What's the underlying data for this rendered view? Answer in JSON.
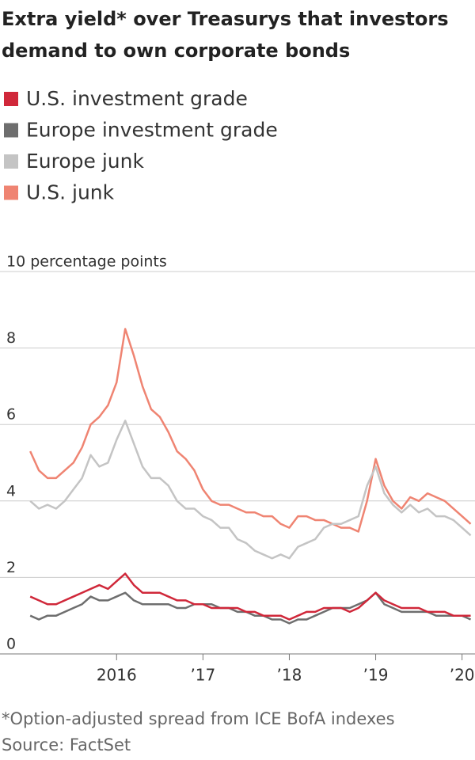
{
  "chart_data": {
    "type": "line",
    "title": "Extra yield* over Treasurys that investors demand to own corporate bonds",
    "footnote": "*Option-adjusted spread from ICE BofA indexes",
    "source": "Source: FactSet",
    "x": [
      2015.0,
      2015.1,
      2015.2,
      2015.3,
      2015.4,
      2015.5,
      2015.6,
      2015.7,
      2015.8,
      2015.9,
      2016.0,
      2016.1,
      2016.2,
      2016.3,
      2016.4,
      2016.5,
      2016.6,
      2016.7,
      2016.8,
      2016.9,
      2017.0,
      2017.1,
      2017.2,
      2017.3,
      2017.4,
      2017.5,
      2017.6,
      2017.7,
      2017.8,
      2017.9,
      2018.0,
      2018.1,
      2018.2,
      2018.3,
      2018.4,
      2018.5,
      2018.6,
      2018.7,
      2018.8,
      2018.9,
      2019.0,
      2019.1,
      2019.2,
      2019.3,
      2019.4,
      2019.5,
      2019.6,
      2019.7,
      2019.8,
      2019.9,
      2020.0,
      2020.1
    ],
    "series": [
      {
        "name": "U.S. investment grade",
        "color": "#d0283a",
        "values": [
          1.5,
          1.4,
          1.3,
          1.3,
          1.4,
          1.5,
          1.6,
          1.7,
          1.8,
          1.7,
          1.9,
          2.1,
          1.8,
          1.6,
          1.6,
          1.6,
          1.5,
          1.4,
          1.4,
          1.3,
          1.3,
          1.2,
          1.2,
          1.2,
          1.2,
          1.1,
          1.1,
          1.0,
          1.0,
          1.0,
          0.9,
          1.0,
          1.1,
          1.1,
          1.2,
          1.2,
          1.2,
          1.1,
          1.2,
          1.4,
          1.6,
          1.4,
          1.3,
          1.2,
          1.2,
          1.2,
          1.1,
          1.1,
          1.1,
          1.0,
          1.0,
          1.0
        ]
      },
      {
        "name": "Europe investment grade",
        "color": "#6e6e6e",
        "values": [
          1.0,
          0.9,
          1.0,
          1.0,
          1.1,
          1.2,
          1.3,
          1.5,
          1.4,
          1.4,
          1.5,
          1.6,
          1.4,
          1.3,
          1.3,
          1.3,
          1.3,
          1.2,
          1.2,
          1.3,
          1.3,
          1.3,
          1.2,
          1.2,
          1.1,
          1.1,
          1.0,
          1.0,
          0.9,
          0.9,
          0.8,
          0.9,
          0.9,
          1.0,
          1.1,
          1.2,
          1.2,
          1.2,
          1.3,
          1.4,
          1.6,
          1.3,
          1.2,
          1.1,
          1.1,
          1.1,
          1.1,
          1.0,
          1.0,
          1.0,
          1.0,
          0.9
        ]
      },
      {
        "name": "Europe junk",
        "color": "#c4c4c4",
        "values": [
          4.0,
          3.8,
          3.9,
          3.8,
          4.0,
          4.3,
          4.6,
          5.2,
          4.9,
          5.0,
          5.6,
          6.1,
          5.5,
          4.9,
          4.6,
          4.6,
          4.4,
          4.0,
          3.8,
          3.8,
          3.6,
          3.5,
          3.3,
          3.3,
          3.0,
          2.9,
          2.7,
          2.6,
          2.5,
          2.6,
          2.5,
          2.8,
          2.9,
          3.0,
          3.3,
          3.4,
          3.4,
          3.5,
          3.6,
          4.4,
          4.9,
          4.2,
          3.9,
          3.7,
          3.9,
          3.7,
          3.8,
          3.6,
          3.6,
          3.5,
          3.3,
          3.1
        ]
      },
      {
        "name": "U.S. junk",
        "color": "#ef8472",
        "values": [
          5.3,
          4.8,
          4.6,
          4.6,
          4.8,
          5.0,
          5.4,
          6.0,
          6.2,
          6.5,
          7.1,
          8.5,
          7.8,
          7.0,
          6.4,
          6.2,
          5.8,
          5.3,
          5.1,
          4.8,
          4.3,
          4.0,
          3.9,
          3.9,
          3.8,
          3.7,
          3.7,
          3.6,
          3.6,
          3.4,
          3.3,
          3.6,
          3.6,
          3.5,
          3.5,
          3.4,
          3.3,
          3.3,
          3.2,
          4.0,
          5.1,
          4.4,
          4.0,
          3.8,
          4.1,
          4.0,
          4.2,
          4.1,
          4.0,
          3.8,
          3.6,
          3.4
        ]
      }
    ],
    "xlim": [
      2014.65,
      2020.15
    ],
    "xticks": [
      {
        "value": 2016,
        "label": "2016"
      },
      {
        "value": 2017,
        "label": "’17"
      },
      {
        "value": 2018,
        "label": "’18"
      },
      {
        "value": 2019,
        "label": "’19"
      },
      {
        "value": 2020,
        "label": "’20"
      }
    ],
    "ylim": [
      0,
      10
    ],
    "yticks": [
      0,
      2,
      4,
      6,
      8,
      {
        "value": 10,
        "label": "10 percentage points"
      }
    ],
    "grid": true
  }
}
